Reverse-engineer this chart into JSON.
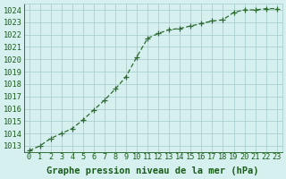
{
  "x": [
    0,
    1,
    2,
    3,
    4,
    5,
    6,
    7,
    8,
    9,
    10,
    11,
    12,
    13,
    14,
    15,
    16,
    17,
    18,
    19,
    20,
    21,
    22,
    23
  ],
  "y": [
    1012.6,
    1013.0,
    1013.6,
    1014.0,
    1014.4,
    1015.1,
    1015.9,
    1016.7,
    1017.6,
    1018.6,
    1020.2,
    1021.7,
    1022.1,
    1022.4,
    1022.5,
    1022.7,
    1022.9,
    1023.1,
    1023.2,
    1023.8,
    1024.0,
    1024.0,
    1024.1,
    1024.1
  ],
  "xlabel": "Graphe pression niveau de la mer (hPa)",
  "ylim": [
    1012.5,
    1024.5
  ],
  "yticks": [
    1013,
    1014,
    1015,
    1016,
    1017,
    1018,
    1019,
    1020,
    1021,
    1022,
    1023,
    1024
  ],
  "xticks": [
    0,
    1,
    2,
    3,
    4,
    5,
    6,
    7,
    8,
    9,
    10,
    11,
    12,
    13,
    14,
    15,
    16,
    17,
    18,
    19,
    20,
    21,
    22,
    23
  ],
  "line_color": "#2d6a2d",
  "marker": "+",
  "bg_color": "#d6f0f0",
  "grid_color": "#aacfcf",
  "label_color": "#1a5c1a",
  "tick_color": "#1a5c1a",
  "xlabel_fontsize": 7.5,
  "tick_fontsize": 6.2
}
